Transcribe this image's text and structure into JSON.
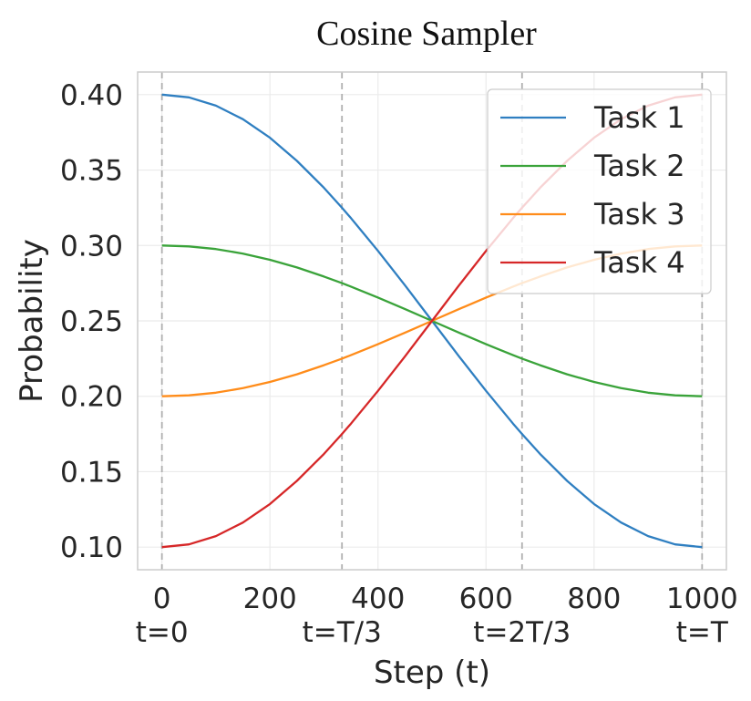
{
  "chart_data": {
    "type": "line",
    "title": "Cosine Sampler",
    "xlabel": "Step (t)",
    "ylabel": "Probability",
    "xlim": [
      -45,
      1045
    ],
    "ylim": [
      0.085,
      0.415
    ],
    "grid": true,
    "legend_position": "top-right",
    "x_ticks": [
      0,
      200,
      400,
      600,
      800,
      1000
    ],
    "x_tick_labels": [
      "0",
      "200",
      "400",
      "600",
      "800",
      "1000"
    ],
    "y_ticks": [
      0.1,
      0.15,
      0.2,
      0.25,
      0.3,
      0.35,
      0.4
    ],
    "y_tick_labels": [
      "0.10",
      "0.15",
      "0.20",
      "0.25",
      "0.30",
      "0.35",
      "0.40"
    ],
    "phase_markers": [
      {
        "x": 0,
        "label": "t=0"
      },
      {
        "x": 333.3,
        "label": "t=T/3"
      },
      {
        "x": 666.7,
        "label": "t=2T/3"
      },
      {
        "x": 1000,
        "label": "t=T"
      }
    ],
    "x": [
      0,
      50,
      100,
      150,
      200,
      250,
      300,
      333.3,
      350,
      400,
      450,
      500,
      550,
      600,
      650,
      666.7,
      700,
      750,
      800,
      850,
      900,
      950,
      1000
    ],
    "series": [
      {
        "name": "Task 1",
        "color": "#2f7fc1",
        "values": [
          0.4,
          0.3982,
          0.3927,
          0.3837,
          0.3714,
          0.3561,
          0.3382,
          0.325,
          0.3181,
          0.2964,
          0.2735,
          0.25,
          0.2265,
          0.2036,
          0.1819,
          0.175,
          0.1618,
          0.1439,
          0.1286,
          0.1163,
          0.1073,
          0.1018,
          0.1
        ]
      },
      {
        "name": "Task 2",
        "color": "#3aa33a",
        "values": [
          0.3,
          0.2994,
          0.2976,
          0.2946,
          0.2905,
          0.2854,
          0.2794,
          0.275,
          0.2727,
          0.2655,
          0.2578,
          0.25,
          0.2422,
          0.2345,
          0.2273,
          0.225,
          0.2206,
          0.2146,
          0.2095,
          0.2054,
          0.2024,
          0.2006,
          0.2
        ]
      },
      {
        "name": "Task 3",
        "color": "#ff8c1a",
        "values": [
          0.2,
          0.2006,
          0.2024,
          0.2054,
          0.2095,
          0.2146,
          0.2206,
          0.225,
          0.2273,
          0.2345,
          0.2422,
          0.25,
          0.2578,
          0.2655,
          0.2727,
          0.275,
          0.2794,
          0.2854,
          0.2905,
          0.2946,
          0.2976,
          0.2994,
          0.3
        ]
      },
      {
        "name": "Task 4",
        "color": "#d62728",
        "values": [
          0.1,
          0.1018,
          0.1073,
          0.1163,
          0.1286,
          0.1439,
          0.1618,
          0.175,
          0.1819,
          0.2036,
          0.2265,
          0.25,
          0.2735,
          0.2964,
          0.3181,
          0.325,
          0.3382,
          0.3561,
          0.3714,
          0.3837,
          0.3927,
          0.3982,
          0.4
        ]
      }
    ]
  }
}
